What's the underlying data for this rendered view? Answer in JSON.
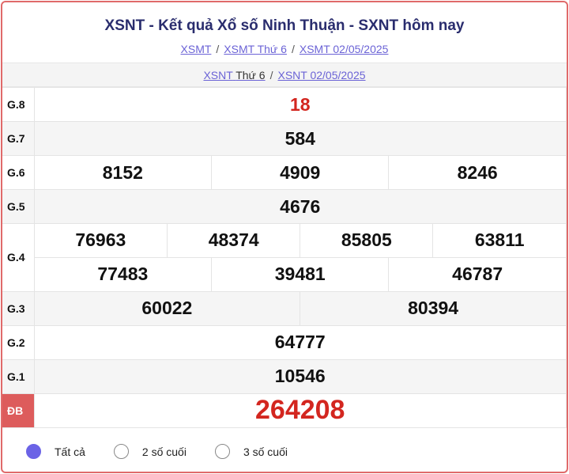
{
  "header": {
    "title": "XSNT - Kết quả Xổ số Ninh Thuận - SXNT hôm nay",
    "breadcrumbs": [
      "XSMT",
      "XSMT Thứ 6",
      "XSMT 02/05/2025"
    ]
  },
  "subnav": {
    "link1": "XSNT",
    "link1_suffix": "Thứ 6",
    "link2": "XSNT 02/05/2025"
  },
  "results": {
    "g8": {
      "label": "G.8",
      "values": [
        "18"
      ]
    },
    "g7": {
      "label": "G.7",
      "values": [
        "584"
      ]
    },
    "g6": {
      "label": "G.6",
      "values": [
        "8152",
        "4909",
        "8246"
      ]
    },
    "g5": {
      "label": "G.5",
      "values": [
        "4676"
      ]
    },
    "g4": {
      "label": "G.4",
      "values": [
        "76963",
        "48374",
        "85805",
        "63811",
        "77483",
        "39481",
        "46787"
      ]
    },
    "g3": {
      "label": "G.3",
      "values": [
        "60022",
        "80394"
      ]
    },
    "g2": {
      "label": "G.2",
      "values": [
        "64777"
      ]
    },
    "g1": {
      "label": "G.1",
      "values": [
        "10546"
      ]
    },
    "db": {
      "label": "ĐB",
      "values": [
        "264208"
      ]
    }
  },
  "filter": {
    "options": [
      "Tất cả",
      "2 số cuối",
      "3 số cuối"
    ],
    "selected": "Tất cả"
  },
  "colors": {
    "accent": "#6b63e6",
    "prize_red": "#d3261f",
    "border": "#e06a6a",
    "title": "#2a2d6e"
  }
}
